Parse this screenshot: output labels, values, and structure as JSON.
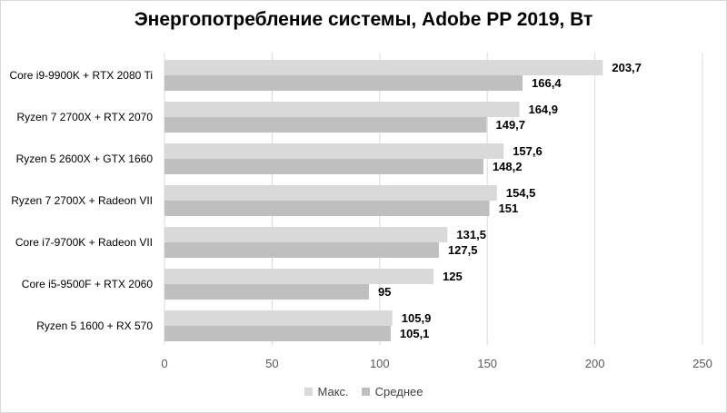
{
  "chart_data": {
    "type": "bar",
    "orientation": "horizontal",
    "title": "Энергопотребление системы, Adobe PP 2019, Вт",
    "categories": [
      "Core i9-9900K + RTX 2080 Ti",
      "Ryzen 7 2700X + RTX 2070",
      "Ryzen 5 2600X + GTX 1660",
      "Ryzen 7 2700X + Radeon VII",
      "Core i7-9700K + Radeon VII",
      "Core i5-9500F + RTX 2060",
      "Ryzen 5 1600 + RX 570"
    ],
    "series": [
      {
        "name": "Макс.",
        "color": "#d9d9d9",
        "values": [
          203.7,
          164.9,
          157.6,
          154.5,
          131.5,
          125,
          105.9
        ],
        "labels": [
          "203,7",
          "164,9",
          "157,6",
          "154,5",
          "131,5",
          "125",
          "105,9"
        ]
      },
      {
        "name": "Среднее",
        "color": "#bfbfbf",
        "values": [
          166.4,
          149.7,
          148.2,
          151,
          127.5,
          95,
          105.1
        ],
        "labels": [
          "166,4",
          "149,7",
          "148,2",
          "151",
          "127,5",
          "95",
          "105,1"
        ]
      }
    ],
    "xlim": [
      0,
      250
    ],
    "xticks": [
      0,
      50,
      100,
      150,
      200,
      250
    ],
    "gridlines": true,
    "legend_position": "bottom",
    "gridline_color": "#d9d9d9"
  }
}
